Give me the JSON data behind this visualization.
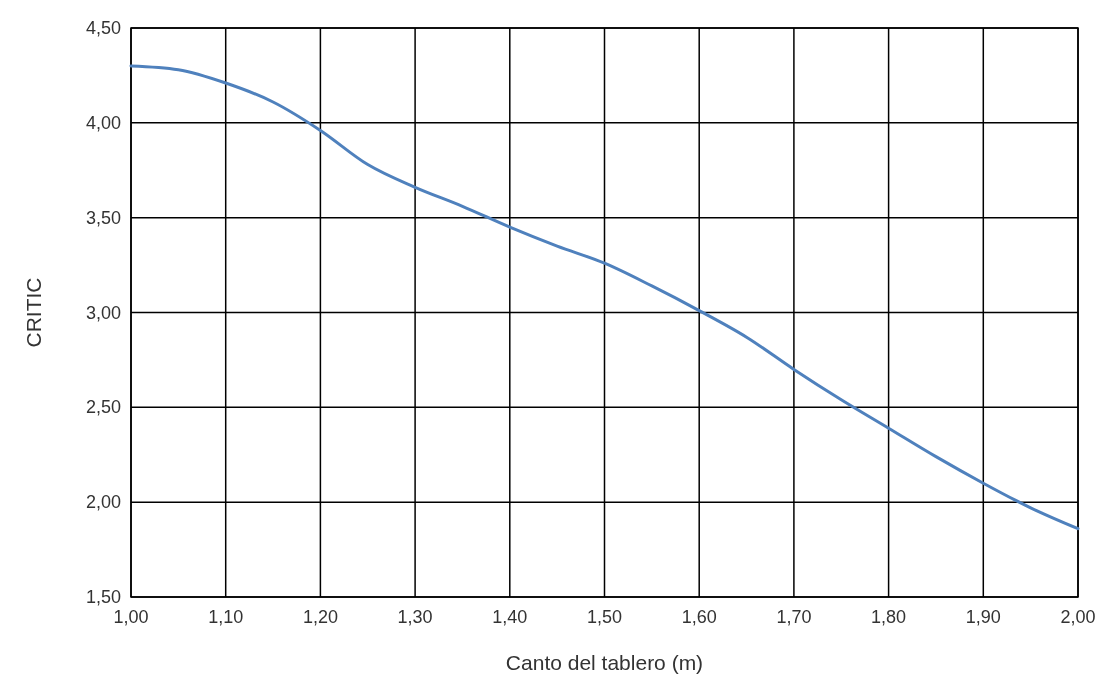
{
  "chart_data": {
    "type": "line",
    "xlabel": "Canto del tablero (m)",
    "ylabel": "CRITIC",
    "x": [
      1.0,
      1.05,
      1.1,
      1.15,
      1.2,
      1.25,
      1.3,
      1.35,
      1.4,
      1.45,
      1.5,
      1.55,
      1.6,
      1.65,
      1.7,
      1.75,
      1.8,
      1.85,
      1.9,
      1.95,
      2.0
    ],
    "series": [
      {
        "color": "#4f81bd",
        "values": [
          4.3,
          4.28,
          4.21,
          4.11,
          3.96,
          3.78,
          3.66,
          3.56,
          3.45,
          3.35,
          3.26,
          3.14,
          3.01,
          2.87,
          2.7,
          2.54,
          2.39,
          2.24,
          2.1,
          1.97,
          1.86
        ]
      }
    ],
    "xlim": [
      1.0,
      2.0
    ],
    "xticks": [
      {
        "value": 1.0,
        "label": "1,00"
      },
      {
        "value": 1.1,
        "label": "1,10"
      },
      {
        "value": 1.2,
        "label": "1,20"
      },
      {
        "value": 1.3,
        "label": "1,30"
      },
      {
        "value": 1.4,
        "label": "1,40"
      },
      {
        "value": 1.5,
        "label": "1,50"
      },
      {
        "value": 1.6,
        "label": "1,60"
      },
      {
        "value": 1.7,
        "label": "1,70"
      },
      {
        "value": 1.8,
        "label": "1,80"
      },
      {
        "value": 1.9,
        "label": "1,90"
      },
      {
        "value": 2.0,
        "label": "2,00"
      }
    ],
    "ylim": [
      1.5,
      4.5
    ],
    "yticks": [
      {
        "value": 1.5,
        "label": "1,50"
      },
      {
        "value": 2.0,
        "label": "2,00"
      },
      {
        "value": 2.5,
        "label": "2,50"
      },
      {
        "value": 3.0,
        "label": "3,00"
      },
      {
        "value": 3.5,
        "label": "3,50"
      },
      {
        "value": 4.0,
        "label": "4,00"
      },
      {
        "value": 4.5,
        "label": "4,50"
      }
    ],
    "grid": true,
    "marker": "none",
    "line_style": "solid"
  }
}
